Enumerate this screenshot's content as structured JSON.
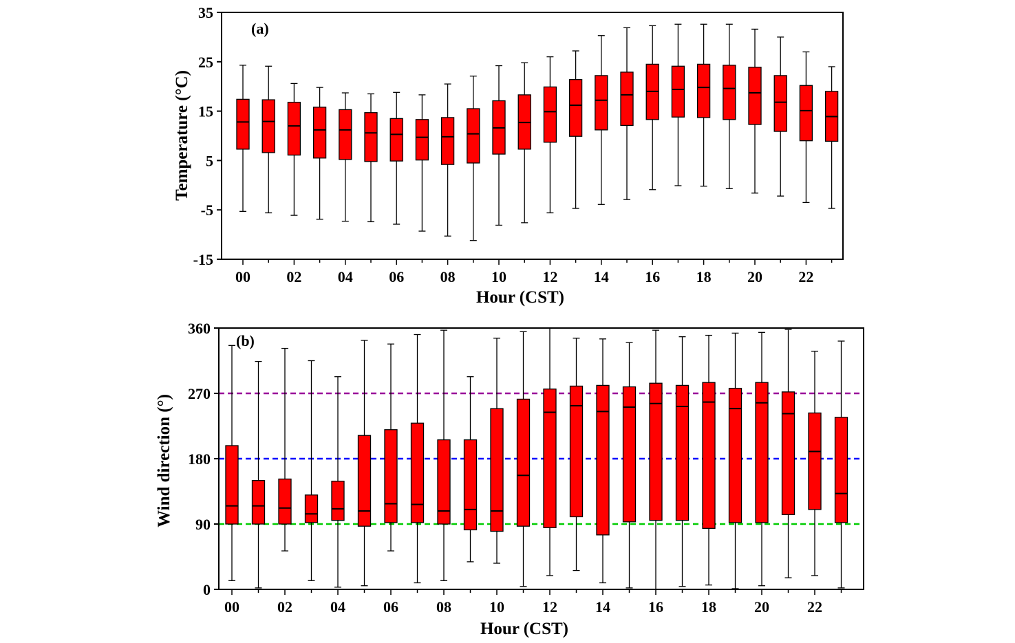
{
  "chart_data": [
    {
      "type": "box",
      "panel_label": "(a)",
      "xlabel": "Hour (CST)",
      "ylabel": "Temperature (°C)",
      "ylim": [
        -15,
        35
      ],
      "yticks": [
        "35",
        "25",
        "15",
        "5",
        "-5",
        "-15"
      ],
      "yticks_values": [
        35,
        25,
        15,
        5,
        -5,
        -15
      ],
      "xtick_labels": [
        "00",
        "02",
        "04",
        "06",
        "08",
        "10",
        "12",
        "14",
        "16",
        "18",
        "20",
        "22"
      ],
      "xtick_hours": [
        0,
        2,
        4,
        6,
        8,
        10,
        12,
        14,
        16,
        18,
        20,
        22
      ],
      "box_color": "#ff0000",
      "hours": [
        0,
        1,
        2,
        3,
        4,
        5,
        6,
        7,
        8,
        9,
        10,
        11,
        12,
        13,
        14,
        15,
        16,
        17,
        18,
        19,
        20,
        21,
        22,
        23
      ],
      "min": [
        -5.3,
        -5.6,
        -6.1,
        -6.9,
        -7.3,
        -7.4,
        -7.9,
        -9.3,
        -10.3,
        -11.2,
        -8.1,
        -7.6,
        -5.6,
        -4.7,
        -3.9,
        -2.9,
        -0.9,
        -0.1,
        -0.2,
        -0.7,
        -1.6,
        -2.2,
        -3.5,
        -4.7
      ],
      "q1": [
        7.3,
        6.6,
        6.1,
        5.5,
        5.2,
        4.8,
        4.9,
        5.1,
        4.2,
        4.5,
        6.3,
        7.3,
        8.7,
        9.9,
        11.2,
        12.1,
        13.3,
        13.8,
        13.7,
        13.3,
        12.3,
        10.9,
        9.0,
        8.9
      ],
      "median": [
        12.8,
        12.9,
        12.0,
        11.2,
        11.2,
        10.6,
        10.3,
        9.7,
        9.8,
        10.4,
        11.6,
        12.7,
        14.9,
        16.2,
        17.2,
        18.3,
        19.0,
        19.4,
        19.8,
        19.6,
        18.7,
        16.8,
        15.1,
        13.9
      ],
      "q3": [
        17.4,
        17.3,
        16.8,
        15.8,
        15.3,
        14.7,
        13.5,
        13.3,
        13.7,
        15.5,
        17.1,
        18.3,
        19.9,
        21.4,
        22.2,
        22.9,
        24.5,
        24.1,
        24.5,
        24.3,
        23.9,
        22.2,
        20.2,
        19.0
      ],
      "max": [
        24.3,
        24.1,
        20.6,
        19.8,
        18.7,
        18.5,
        18.8,
        18.3,
        20.5,
        22.1,
        24.2,
        24.8,
        26.0,
        27.2,
        30.3,
        31.9,
        32.3,
        32.6,
        32.6,
        32.6,
        31.6,
        30.0,
        27.0,
        24.0
      ]
    },
    {
      "type": "box",
      "panel_label": "(b)",
      "xlabel": "Hour (CST)",
      "ylabel": "Wind direction (°)",
      "ylim": [
        0,
        360
      ],
      "yticks": [
        "360",
        "270",
        "180",
        "90",
        "0"
      ],
      "yticks_values": [
        360,
        270,
        180,
        90,
        0
      ],
      "xtick_labels": [
        "00",
        "02",
        "04",
        "06",
        "08",
        "10",
        "12",
        "14",
        "16",
        "18",
        "20",
        "22"
      ],
      "xtick_hours": [
        0,
        2,
        4,
        6,
        8,
        10,
        12,
        14,
        16,
        18,
        20,
        22
      ],
      "box_color": "#ff0000",
      "reference_lines": [
        {
          "value": 270,
          "color": "#990099"
        },
        {
          "value": 180,
          "color": "#0000ff"
        },
        {
          "value": 90,
          "color": "#00cc00"
        }
      ],
      "hours": [
        0,
        1,
        2,
        3,
        4,
        5,
        6,
        7,
        8,
        9,
        10,
        11,
        12,
        13,
        14,
        15,
        16,
        17,
        18,
        19,
        20,
        21,
        22,
        23
      ],
      "min": [
        12,
        2,
        53,
        12,
        3,
        5,
        53,
        9,
        12,
        38,
        36,
        4,
        19,
        26,
        9,
        2,
        0,
        4,
        6,
        1,
        5,
        16,
        19,
        2
      ],
      "q1": [
        90,
        90,
        90,
        92,
        95,
        87,
        92,
        92,
        90,
        82,
        80,
        87,
        85,
        100,
        75,
        93,
        95,
        95,
        84,
        92,
        92,
        103,
        110,
        92
      ],
      "median": [
        115,
        115,
        112,
        104,
        111,
        108,
        118,
        117,
        108,
        110,
        108,
        157,
        244,
        253,
        245,
        251,
        256,
        252,
        258,
        249,
        257,
        242,
        190,
        132
      ],
      "q3": [
        198,
        150,
        152,
        130,
        149,
        212,
        220,
        229,
        206,
        206,
        249,
        262,
        276,
        280,
        281,
        279,
        284,
        281,
        285,
        277,
        285,
        272,
        243,
        237
      ],
      "max": [
        336,
        314,
        332,
        315,
        293,
        343,
        338,
        351,
        357,
        293,
        346,
        355,
        360,
        346,
        345,
        340,
        357,
        348,
        350,
        353,
        354,
        358,
        328,
        342
      ]
    }
  ]
}
